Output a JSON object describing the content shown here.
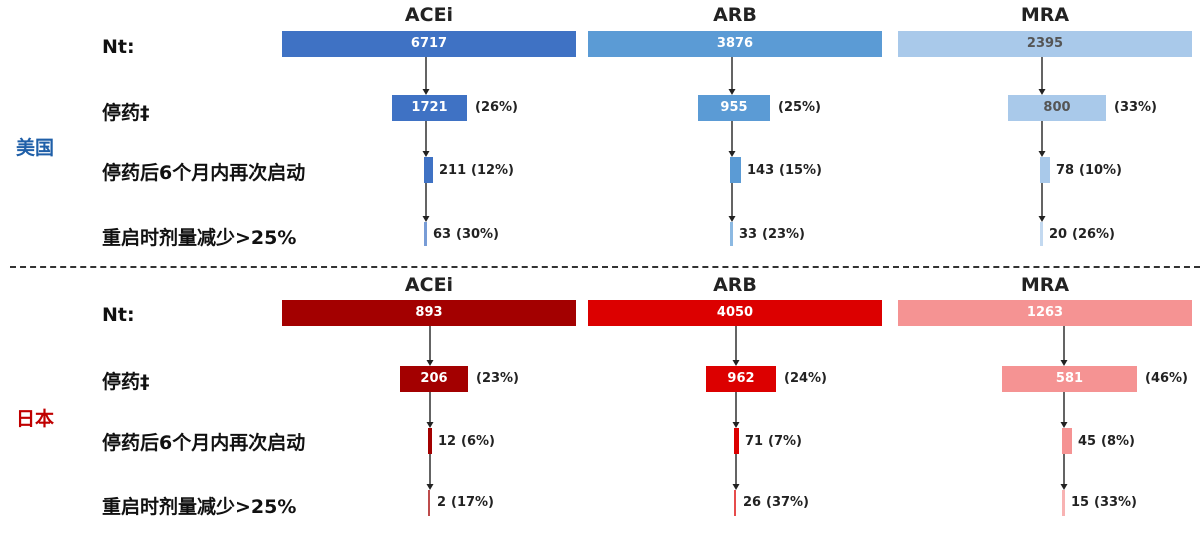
{
  "colors": {
    "us": [
      "#3f72c4",
      "#5b9bd5",
      "#a9c9ea"
    ],
    "jp": [
      "#a30000",
      "#dc0000",
      "#f59393"
    ],
    "us_label": "#1f5fa8",
    "jp_label": "#c00000"
  },
  "chart_data": [
    {
      "type": "bar",
      "region": "美国",
      "drugs": [
        "ACEi",
        "ARB",
        "MRA"
      ],
      "rows": [
        "Nt:",
        "停药‡",
        "停药后6个月内再次启动",
        "重启时剂量减少>25%"
      ],
      "series": [
        {
          "name": "ACEi",
          "n": "6717",
          "stopped": "1721",
          "stopped_pct": "(26%)",
          "restart": "211",
          "restart_pct": "(12%)",
          "reduced": "63",
          "reduced_pct": "(30%)"
        },
        {
          "name": "ARB",
          "n": "3876",
          "stopped": "955",
          "stopped_pct": "(25%)",
          "restart": "143",
          "restart_pct": "(15%)",
          "reduced": "33",
          "reduced_pct": "(23%)"
        },
        {
          "name": "MRA",
          "n": "2395",
          "stopped": "800",
          "stopped_pct": "(33%)",
          "restart": "78",
          "restart_pct": "(10%)",
          "reduced": "20",
          "reduced_pct": "(26%)"
        }
      ]
    },
    {
      "type": "bar",
      "region": "日本",
      "drugs": [
        "ACEi",
        "ARB",
        "MRA"
      ],
      "rows": [
        "Nt:",
        "停药‡",
        "停药后6个月内再次启动",
        "重启时剂量减少>25%"
      ],
      "series": [
        {
          "name": "ACEi",
          "n": "893",
          "stopped": "206",
          "stopped_pct": "(23%)",
          "restart": "12",
          "restart_pct": "(6%)",
          "reduced": "2",
          "reduced_pct": "(17%)"
        },
        {
          "name": "ARB",
          "n": "4050",
          "stopped": "962",
          "stopped_pct": "(24%)",
          "restart": "71",
          "restart_pct": "(7%)",
          "reduced": "26",
          "reduced_pct": "(37%)"
        },
        {
          "name": "MRA",
          "n": "1263",
          "stopped": "581",
          "stopped_pct": "(46%)",
          "restart": "45",
          "restart_pct": "(8%)",
          "reduced": "15",
          "reduced_pct": "(33%)"
        }
      ]
    }
  ]
}
